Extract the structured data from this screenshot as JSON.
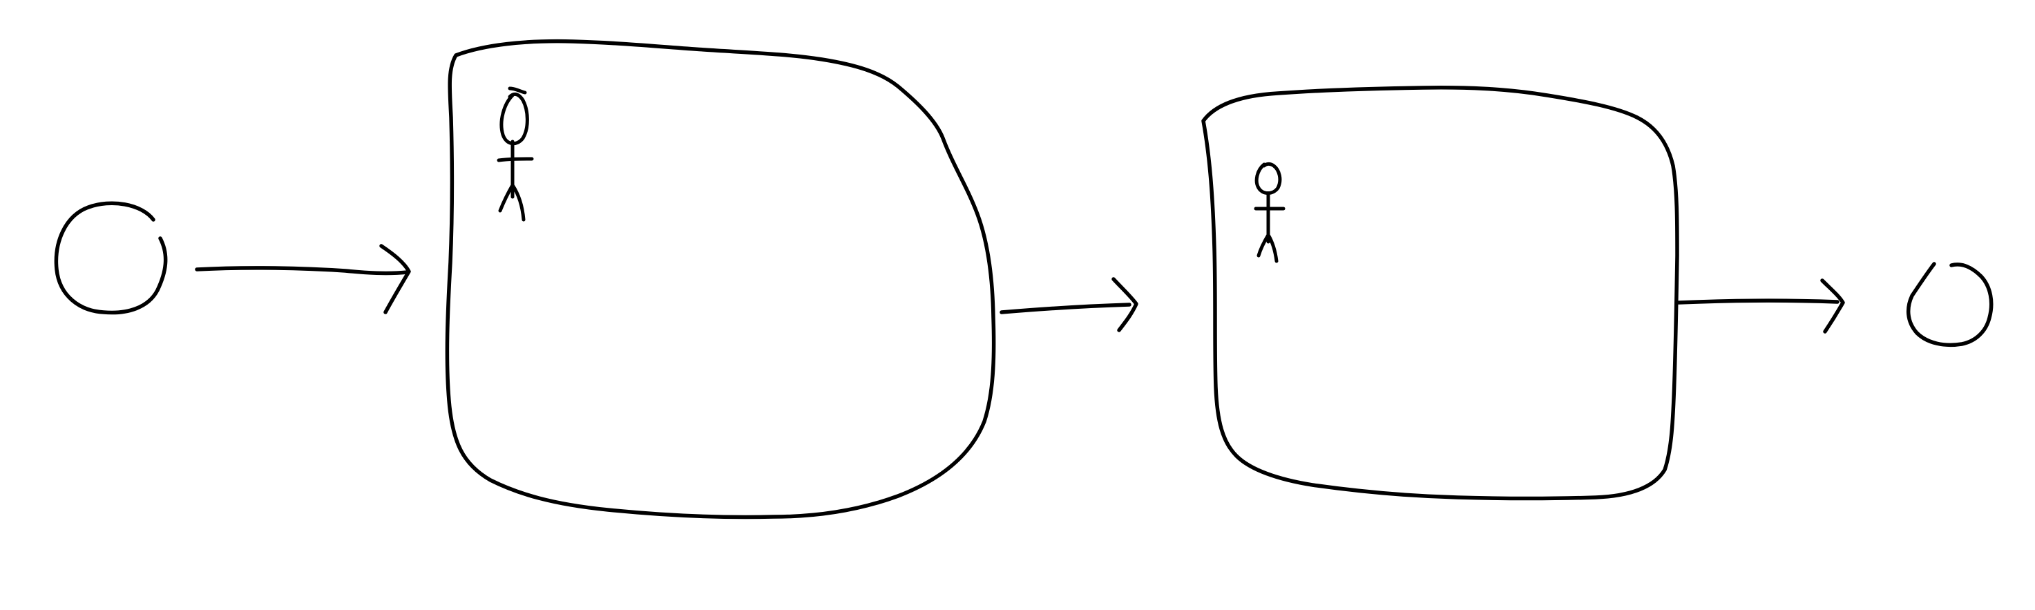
{
  "diagram": {
    "style": "hand-drawn sketch",
    "ink_color": "#000000",
    "background_color": "#ffffff",
    "nodes": [
      {
        "id": "start",
        "kind": "start-event-circle"
      },
      {
        "id": "task-1",
        "kind": "user-task",
        "icon": "stick-figure-icon"
      },
      {
        "id": "task-2",
        "kind": "user-task",
        "icon": "stick-figure-icon"
      },
      {
        "id": "end",
        "kind": "end-event-circle"
      }
    ],
    "edges": [
      {
        "from": "start",
        "to": "task-1"
      },
      {
        "from": "task-1",
        "to": "task-2"
      },
      {
        "from": "task-2",
        "to": "end"
      }
    ]
  }
}
